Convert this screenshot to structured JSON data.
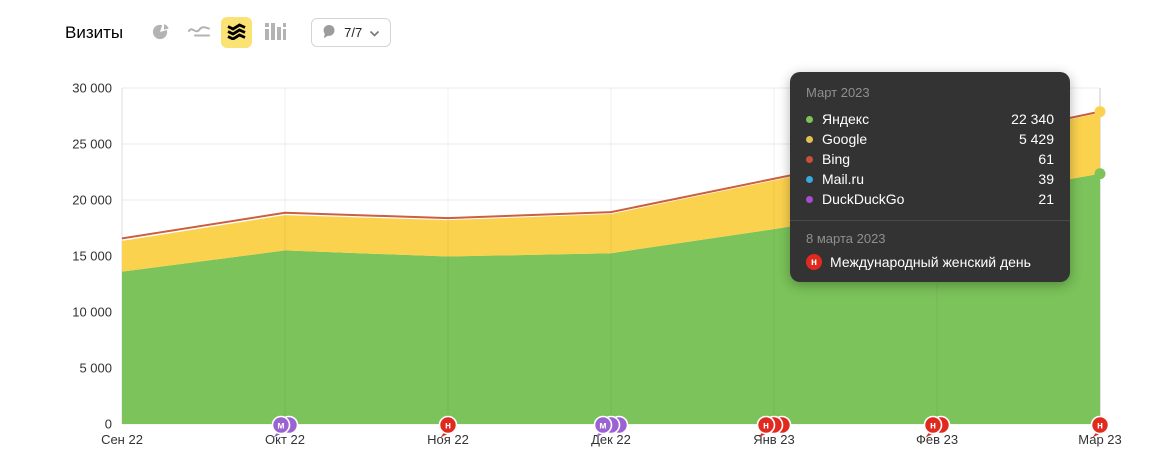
{
  "header": {
    "title": "Визиты",
    "chart_types": [
      {
        "id": "pie",
        "active": false
      },
      {
        "id": "line",
        "active": false
      },
      {
        "id": "stacked-area",
        "active": true
      },
      {
        "id": "bar",
        "active": false
      }
    ],
    "comments_button": {
      "label": "7/7"
    }
  },
  "chart_data": {
    "type": "area",
    "stacked": true,
    "title": "Визиты",
    "x": [
      "Сен 22",
      "Окт 22",
      "Ноя 22",
      "Дек 22",
      "Янв 23",
      "Фев 23",
      "Мар 23"
    ],
    "series": [
      {
        "name": "Яндекс",
        "color": "#7bc35a",
        "values": [
          13600,
          15500,
          14950,
          15250,
          17400,
          19800,
          22340
        ]
      },
      {
        "name": "Google",
        "color": "#fbd24e",
        "values": [
          2750,
          3150,
          3250,
          3500,
          4350,
          4900,
          5429
        ]
      },
      {
        "name": "Bing",
        "color": "#cb5f41",
        "values": [
          160,
          150,
          120,
          110,
          90,
          75,
          61
        ]
      },
      {
        "name": "Mail.ru",
        "color": "#39a8dc",
        "values": [
          40,
          40,
          40,
          40,
          40,
          40,
          39
        ]
      },
      {
        "name": "DuckDuckGo",
        "color": "#a64ed3",
        "values": [
          20,
          20,
          20,
          20,
          20,
          20,
          21
        ]
      }
    ],
    "ylim": [
      0,
      30000
    ],
    "ytick_step": 5000,
    "grid": true,
    "legend_position": "tooltip",
    "hover_index": 6,
    "markers": [
      {
        "x": "Окт 22",
        "letter": "м",
        "color": "#9a63d1",
        "count": 2
      },
      {
        "x": "Ноя 22",
        "letter": "н",
        "color": "#e02a1f",
        "count": 1
      },
      {
        "x": "Дек 22",
        "letter": "м",
        "color": "#9a63d1",
        "count": 3
      },
      {
        "x": "Янв 23",
        "letter": "н",
        "color": "#e02a1f",
        "count": 3
      },
      {
        "x": "Фев 23",
        "letter": "н",
        "color": "#e02a1f",
        "count": 2
      },
      {
        "x": "Мар 23",
        "letter": "н",
        "color": "#e02a1f",
        "count": 1
      }
    ]
  },
  "tooltip": {
    "title": "Март 2023",
    "rows": [
      {
        "name": "Яндекс",
        "value": "22 340",
        "color": "#7bc35a"
      },
      {
        "name": "Google",
        "value": "5 429",
        "color": "#e3c053"
      },
      {
        "name": "Bing",
        "value": "61",
        "color": "#cb4f3b"
      },
      {
        "name": "Mail.ru",
        "value": "39",
        "color": "#39a8dc"
      },
      {
        "name": "DuckDuckGo",
        "value": "21",
        "color": "#a64ed3"
      }
    ],
    "event": {
      "date": "8 марта 2023",
      "badge_letter": "н",
      "badge_color": "#e02a1f",
      "text": "Международный женский день"
    }
  }
}
